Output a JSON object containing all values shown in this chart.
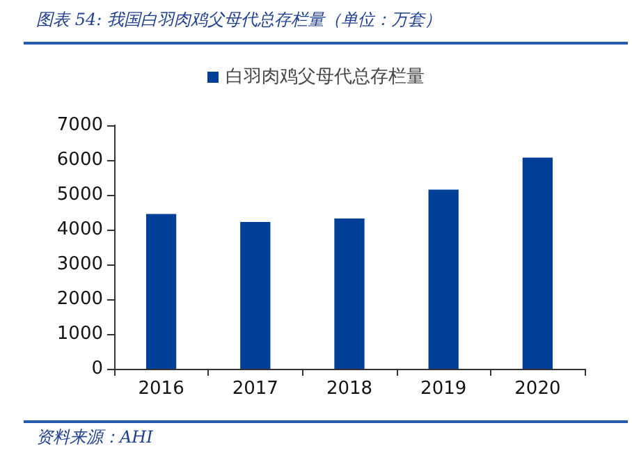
{
  "chart_data": {
    "type": "bar",
    "title": "图表 54:  我国白羽肉鸡父母代总存栏量（单位：万套）",
    "categories": [
      "2016",
      "2017",
      "2018",
      "2019",
      "2020"
    ],
    "series": [
      {
        "name": "白羽肉鸡父母代总存栏量",
        "color": "#003f98",
        "values": [
          4450,
          4220,
          4320,
          5150,
          6070
        ]
      }
    ],
    "ylim": [
      0,
      7000
    ],
    "yticks": [
      0,
      1000,
      2000,
      3000,
      4000,
      5000,
      6000,
      7000
    ],
    "grid": false,
    "legend": "top",
    "annotations": [
      "资料来源：AHI"
    ]
  }
}
